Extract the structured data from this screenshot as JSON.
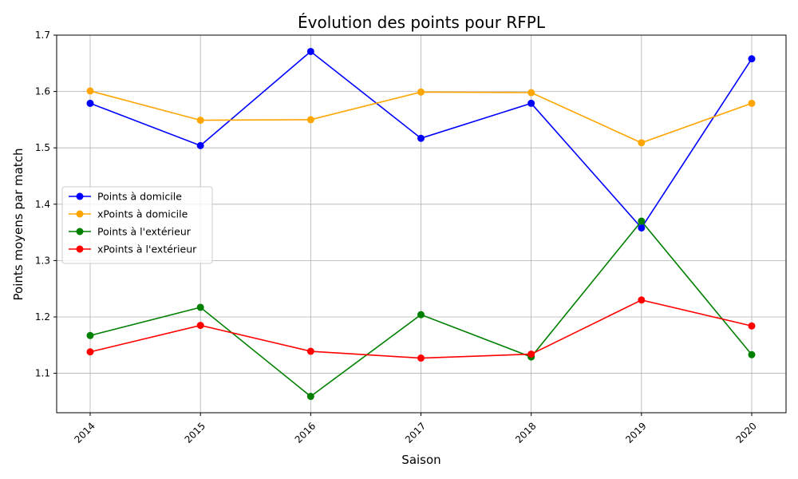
{
  "chart_data": {
    "type": "line",
    "title": "Évolution des points pour RFPL",
    "xlabel": "Saison",
    "ylabel": "Points moyens par match",
    "categories": [
      "2014",
      "2015",
      "2016",
      "2017",
      "2018",
      "2019",
      "2020"
    ],
    "ylim": [
      1.03,
      1.7
    ],
    "yticks": [
      "1.1",
      "1.2",
      "1.3",
      "1.4",
      "1.5",
      "1.6",
      "1.7"
    ],
    "grid": true,
    "legend_position": "center-left",
    "series": [
      {
        "name": "Points à domicile",
        "color": "#0000ff",
        "values": [
          1.579,
          1.504,
          1.671,
          1.517,
          1.579,
          1.358,
          1.658
        ]
      },
      {
        "name": "xPoints à domicile",
        "color": "#ffa500",
        "values": [
          1.601,
          1.549,
          1.55,
          1.599,
          1.598,
          1.509,
          1.579
        ]
      },
      {
        "name": "Points à l'extérieur",
        "color": "#008000",
        "values": [
          1.167,
          1.217,
          1.059,
          1.204,
          1.129,
          1.37,
          1.133
        ]
      },
      {
        "name": "xPoints à l'extérieur",
        "color": "#ff0000",
        "values": [
          1.138,
          1.185,
          1.139,
          1.127,
          1.134,
          1.23,
          1.184
        ]
      }
    ]
  }
}
